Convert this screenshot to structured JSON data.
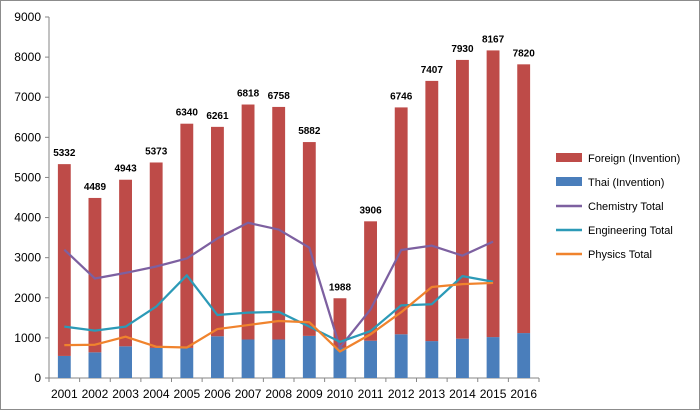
{
  "chart_data": {
    "type": "bar",
    "categories": [
      "2001",
      "2002",
      "2003",
      "2004",
      "2005",
      "2006",
      "2007",
      "2008",
      "2009",
      "2010",
      "2011",
      "2012",
      "2013",
      "2014",
      "2015",
      "2016"
    ],
    "ylim": [
      0,
      9000
    ],
    "yticks": [
      0,
      1000,
      2000,
      3000,
      4000,
      5000,
      6000,
      7000,
      8000,
      9000
    ],
    "grid": false,
    "legend_position": "right",
    "stacked_totals": [
      5332,
      4489,
      4943,
      5373,
      6340,
      6261,
      6818,
      6758,
      5882,
      1988,
      3906,
      6746,
      7407,
      7930,
      8167,
      7820
    ],
    "bar_series": [
      {
        "name": "Foreign (Invention)",
        "color": "#be4b48",
        "values": [
          4782,
          3849,
          4153,
          4623,
          5590,
          5221,
          5858,
          5798,
          4832,
          1228,
          2976,
          5656,
          6487,
          6950,
          7147,
          6700
        ]
      },
      {
        "name": "Thai (Invention)",
        "color": "#4a7ebb",
        "values": [
          550,
          640,
          790,
          750,
          750,
          1040,
          960,
          960,
          1050,
          760,
          930,
          1090,
          920,
          980,
          1020,
          1120
        ]
      }
    ],
    "line_series": [
      {
        "name": "Chemistry Total",
        "color": "#7d60a0",
        "values": [
          3200,
          2480,
          2620,
          2780,
          2980,
          3480,
          3870,
          3700,
          3250,
          760,
          1710,
          3190,
          3300,
          3050,
          3400,
          null
        ]
      },
      {
        "name": "Engineering Total",
        "color": "#2c9ab7",
        "values": [
          1280,
          1180,
          1280,
          1780,
          2560,
          1570,
          1630,
          1650,
          1280,
          900,
          1170,
          1810,
          1840,
          2540,
          2400,
          null
        ]
      },
      {
        "name": "Physics Total",
        "color": "#f0832d",
        "values": [
          820,
          830,
          1030,
          780,
          760,
          1220,
          1320,
          1420,
          1390,
          660,
          1090,
          1640,
          2270,
          2340,
          2370,
          null
        ]
      }
    ]
  }
}
